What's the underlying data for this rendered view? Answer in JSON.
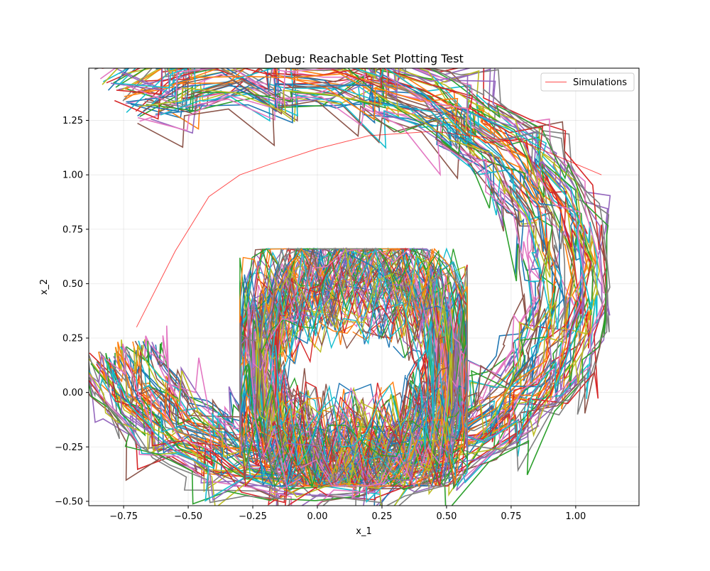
{
  "chart_data": {
    "type": "line",
    "title": "Debug: Reachable Set Plotting Test",
    "xlabel": "x_1",
    "ylabel": "x_2",
    "xlim": [
      -0.885,
      1.245
    ],
    "ylim": [
      -0.52,
      1.49
    ],
    "xticks": [
      -0.75,
      -0.5,
      -0.25,
      0.0,
      0.25,
      0.5,
      0.75,
      1.0
    ],
    "xtick_labels": [
      "−0.75",
      "−0.50",
      "−0.25",
      "0.00",
      "0.25",
      "0.50",
      "0.75",
      "1.00"
    ],
    "yticks": [
      -0.5,
      -0.25,
      0.0,
      0.25,
      0.5,
      0.75,
      1.0,
      1.25
    ],
    "ytick_labels": [
      "−0.50",
      "−0.25",
      "0.00",
      "0.25",
      "0.50",
      "0.75",
      "1.00",
      "1.25"
    ],
    "grid": true,
    "legend": {
      "position": "upper right",
      "entries": [
        {
          "label": "Simulations",
          "color": "#ff0000"
        }
      ]
    },
    "colors": [
      "#1f77b4",
      "#ff7f0e",
      "#2ca02c",
      "#d62728",
      "#9467bd",
      "#8c564b",
      "#e377c2",
      "#7f7f7f",
      "#bcbd22",
      "#17becf"
    ],
    "series": [
      {
        "name": "Simulations",
        "color": "#ff0000",
        "x": [
          -0.7,
          -0.55,
          -0.42,
          -0.3,
          -0.18,
          0.0,
          0.2,
          0.45,
          0.8,
          1.1
        ],
        "y": [
          0.3,
          0.65,
          0.9,
          1.0,
          1.05,
          1.12,
          1.18,
          1.2,
          1.15,
          1.0
        ]
      }
    ]
  }
}
